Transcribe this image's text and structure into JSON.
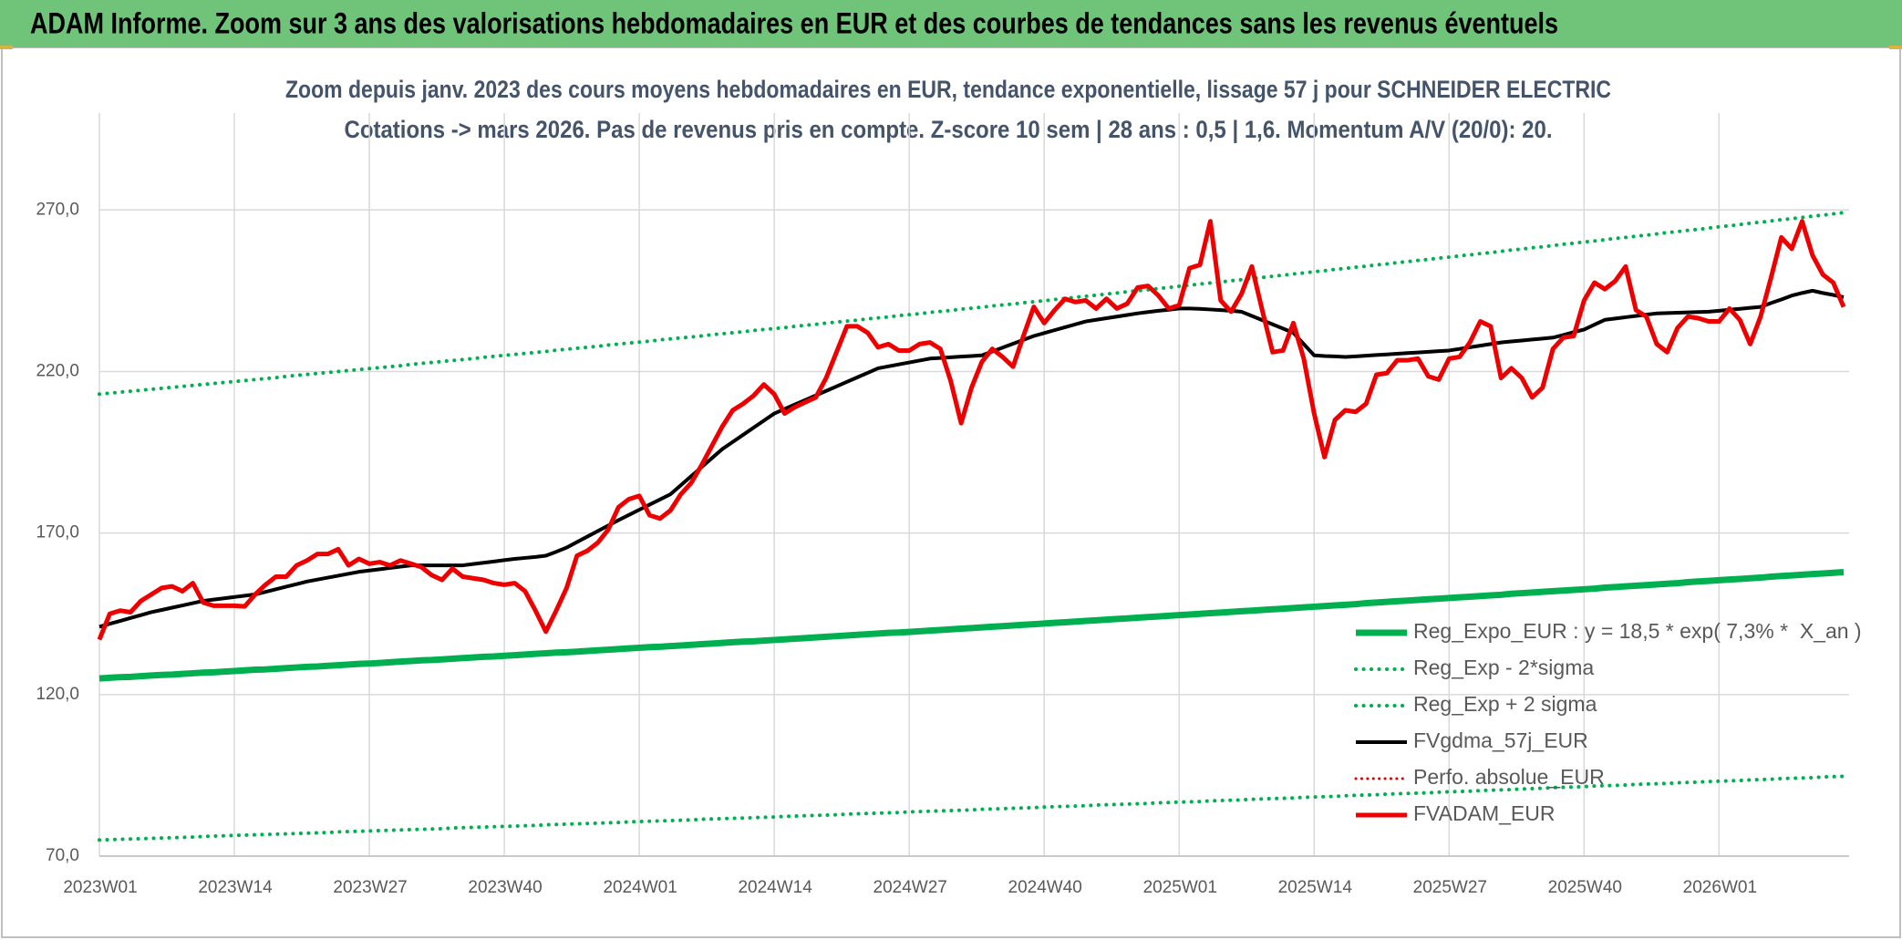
{
  "chart_data": {
    "type": "line",
    "title": "ADAM Informe. Zoom sur 3 ans des valorisations hebdomadaires en EUR et des courbes de tendances sans les revenus éventuels",
    "subtitle": [
      "Zoom depuis janv. 2023 des cours moyens hebdomadaires en EUR, tendance exponentielle, lissage 57 j pour SCHNEIDER ELECTRIC",
      "Cotations -> mars 2026. Pas de revenus pris en compte. Z-score 10 sem | 28 ans : 0,5 | 1,6. Momentum A/V (20/0): 20."
    ],
    "categories": [
      "2023W01",
      null,
      null,
      null,
      null,
      null,
      null,
      null,
      null,
      null,
      null,
      null,
      null,
      "2023W14",
      null,
      null,
      null,
      null,
      null,
      null,
      null,
      null,
      null,
      null,
      null,
      null,
      "2023W27",
      null,
      null,
      null,
      null,
      null,
      null,
      null,
      null,
      null,
      null,
      null,
      null,
      "2023W40",
      null,
      null,
      null,
      null,
      null,
      null,
      null,
      null,
      null,
      null,
      null,
      null,
      "2024W01",
      null,
      null,
      null,
      null,
      null,
      null,
      null,
      null,
      null,
      null,
      null,
      null,
      "2024W14",
      null,
      null,
      null,
      null,
      null,
      null,
      null,
      null,
      null,
      null,
      null,
      null,
      "2024W27",
      null,
      null,
      null,
      null,
      null,
      null,
      null,
      null,
      null,
      null,
      null,
      null,
      "2024W40",
      null,
      null,
      null,
      null,
      null,
      null,
      null,
      null,
      null,
      null,
      null,
      null,
      "2025W01",
      null,
      null,
      null,
      null,
      null,
      null,
      null,
      null,
      null,
      null,
      null,
      null,
      "2025W14",
      null,
      null,
      null,
      null,
      null,
      null,
      null,
      null,
      null,
      null,
      null,
      null,
      "2025W27",
      null,
      null,
      null,
      null,
      null,
      null,
      null,
      null,
      null,
      null,
      null,
      null,
      "2025W40",
      null,
      null,
      null,
      null,
      null,
      null,
      null,
      null,
      null,
      null,
      null,
      null,
      "2026W01",
      null,
      null,
      null,
      null,
      null,
      null,
      null,
      null,
      null,
      null,
      null,
      null
    ],
    "ylim": [
      70,
      300
    ],
    "yticks": [
      {
        "value": 70,
        "label": "70,0"
      },
      {
        "value": 120,
        "label": "120,0"
      },
      {
        "value": 170,
        "label": "170,0"
      },
      {
        "value": 220,
        "label": "220,0"
      },
      {
        "value": 270,
        "label": "270,0"
      }
    ],
    "grid": true,
    "legend": "lower right",
    "series": [
      {
        "name": "Reg_Expo_EUR : y = 18,5 * exp( 7,3% *  X_an )",
        "color": "#00b050",
        "style": "solid",
        "width": 7,
        "values": [
          125.0,
          125.2,
          125.4,
          125.5,
          125.7,
          125.9,
          126.1,
          126.2,
          126.4,
          126.6,
          126.8,
          126.9,
          127.1,
          127.3,
          127.5,
          127.7,
          127.8,
          128.0,
          128.2,
          128.4,
          128.6,
          128.7,
          128.9,
          129.1,
          129.3,
          129.5,
          129.6,
          129.8,
          130.0,
          130.2,
          130.4,
          130.6,
          130.7,
          130.9,
          131.1,
          131.3,
          131.5,
          131.7,
          131.8,
          132.0,
          132.2,
          132.4,
          132.6,
          132.8,
          133.0,
          133.1,
          133.3,
          133.5,
          133.7,
          133.9,
          134.1,
          134.3,
          134.5,
          134.7,
          134.8,
          135.0,
          135.2,
          135.4,
          135.6,
          135.8,
          136.0,
          136.2,
          136.4,
          136.5,
          136.7,
          136.9,
          137.1,
          137.3,
          137.5,
          137.7,
          137.9,
          138.1,
          138.3,
          138.5,
          138.7,
          138.9,
          139.1,
          139.2,
          139.4,
          139.6,
          139.8,
          140.0,
          140.2,
          140.4,
          140.6,
          140.8,
          141.0,
          141.2,
          141.4,
          141.6,
          141.8,
          142.0,
          142.2,
          142.4,
          142.6,
          142.8,
          143.0,
          143.2,
          143.4,
          143.6,
          143.8,
          144.0,
          144.2,
          144.4,
          144.6,
          144.8,
          145.0,
          145.2,
          145.4,
          145.6,
          145.8,
          146.0,
          146.2,
          146.4,
          146.6,
          146.8,
          147.0,
          147.2,
          147.4,
          147.6,
          147.8,
          148.0,
          148.3,
          148.5,
          148.7,
          148.9,
          149.1,
          149.3,
          149.5,
          149.7,
          149.9,
          150.1,
          150.3,
          150.5,
          150.7,
          150.9,
          151.2,
          151.4,
          151.6,
          151.8,
          152.0,
          152.2,
          152.4,
          152.6,
          152.8,
          153.1,
          153.3,
          153.5,
          153.7,
          153.9,
          154.1,
          154.3,
          154.5,
          154.8,
          155.0,
          155.2,
          155.4,
          155.6,
          155.8,
          156.0,
          156.2,
          156.5,
          156.7,
          156.9,
          157.1,
          157.3,
          157.5,
          157.7,
          157.9
        ]
      },
      {
        "name": "Reg_Exp - 2*sigma",
        "color": "#00b050",
        "style": "dotted",
        "width": 4,
        "values": [
          75.0,
          75.1,
          75.2,
          75.3,
          75.4,
          75.5,
          75.6,
          75.7,
          75.8,
          75.9,
          76.1,
          76.2,
          76.3,
          76.4,
          76.5,
          76.6,
          76.7,
          76.8,
          76.9,
          77.0,
          77.1,
          77.2,
          77.3,
          77.5,
          77.6,
          77.7,
          77.8,
          77.9,
          78.0,
          78.1,
          78.2,
          78.3,
          78.4,
          78.5,
          78.7,
          78.8,
          78.9,
          79.0,
          79.1,
          79.2,
          79.3,
          79.4,
          79.5,
          79.7,
          79.8,
          79.9,
          80.0,
          80.1,
          80.2,
          80.3,
          80.4,
          80.6,
          80.7,
          80.8,
          80.9,
          81.0,
          81.1,
          81.2,
          81.4,
          81.5,
          81.6,
          81.7,
          81.8,
          81.9,
          82.0,
          82.1,
          82.3,
          82.4,
          82.5,
          82.6,
          82.7,
          82.8,
          83.0,
          83.1,
          83.2,
          83.3,
          83.4,
          83.5,
          83.7,
          83.8,
          83.9,
          84.0,
          84.1,
          84.2,
          84.3,
          84.5,
          84.6,
          84.7,
          84.8,
          84.9,
          85.0,
          85.2,
          85.3,
          85.4,
          85.5,
          85.6,
          85.8,
          85.9,
          86.0,
          86.1,
          86.2,
          86.3,
          86.5,
          86.6,
          86.7,
          86.8,
          86.9,
          87.1,
          87.2,
          87.3,
          87.4,
          87.6,
          87.7,
          87.8,
          87.9,
          88.0,
          88.2,
          88.3,
          88.4,
          88.5,
          88.7,
          88.8,
          88.9,
          89.0,
          89.2,
          89.3,
          89.4,
          89.5,
          89.6,
          89.8,
          89.9,
          90.0,
          90.1,
          90.3,
          90.4,
          90.5,
          90.6,
          90.8,
          90.9,
          91.0,
          91.2,
          91.3,
          91.4,
          91.5,
          91.7,
          91.8,
          91.9,
          92.0,
          92.2,
          92.3,
          92.4,
          92.5,
          92.7,
          92.8,
          92.9,
          93.1,
          93.2,
          93.3,
          93.4,
          93.6,
          93.7,
          93.8,
          94.0,
          94.1,
          94.2,
          94.3,
          94.5,
          94.6,
          94.7
        ]
      },
      {
        "name": "Reg_Exp + 2 sigma",
        "color": "#00b050",
        "style": "dotted",
        "width": 4,
        "values": [
          213.0,
          213.3,
          213.6,
          213.9,
          214.2,
          214.5,
          214.8,
          215.1,
          215.4,
          215.7,
          216.0,
          216.3,
          216.6,
          216.9,
          217.2,
          217.5,
          217.8,
          218.1,
          218.5,
          218.8,
          219.1,
          219.4,
          219.7,
          220.0,
          220.3,
          220.6,
          220.9,
          221.2,
          221.5,
          221.8,
          222.2,
          222.5,
          222.8,
          223.1,
          223.4,
          223.7,
          224.0,
          224.4,
          224.7,
          225.0,
          225.3,
          225.6,
          225.9,
          226.2,
          226.6,
          226.9,
          227.2,
          227.5,
          227.8,
          228.2,
          228.5,
          228.8,
          229.1,
          229.4,
          229.8,
          230.1,
          230.4,
          230.7,
          231.0,
          231.4,
          231.7,
          232.0,
          232.3,
          232.7,
          233.0,
          233.3,
          233.6,
          234.0,
          234.3,
          234.6,
          235.0,
          235.3,
          235.6,
          235.9,
          236.3,
          236.6,
          236.9,
          237.3,
          237.6,
          237.9,
          238.3,
          238.6,
          238.9,
          239.3,
          239.6,
          239.9,
          240.3,
          240.6,
          240.9,
          241.3,
          241.6,
          241.9,
          242.3,
          242.6,
          243.0,
          243.3,
          243.6,
          244.0,
          244.3,
          244.7,
          245.0,
          245.3,
          245.7,
          246.0,
          246.4,
          246.7,
          247.1,
          247.4,
          247.7,
          248.1,
          248.4,
          248.8,
          249.1,
          249.5,
          249.8,
          250.2,
          250.5,
          250.9,
          251.2,
          251.6,
          251.9,
          252.3,
          252.6,
          253.0,
          253.3,
          253.7,
          254.0,
          254.4,
          254.7,
          255.1,
          255.4,
          255.8,
          256.1,
          256.5,
          256.8,
          257.2,
          257.6,
          257.9,
          258.3,
          258.6,
          259.0,
          259.4,
          259.7,
          260.1,
          260.4,
          260.8,
          261.2,
          261.5,
          261.9,
          262.2,
          262.6,
          263.0,
          263.3,
          263.7,
          264.0,
          264.4,
          264.8,
          265.1,
          265.5,
          265.9,
          266.2,
          266.6,
          267.0,
          267.3,
          267.7,
          268.1,
          268.4,
          268.8,
          269.2
        ]
      },
      {
        "name": "FVgdma_57j_EUR",
        "color": "#000000",
        "style": "solid",
        "width": 4,
        "values": [
          141.0,
          141.9,
          142.8,
          143.7,
          144.6,
          145.5,
          146.2,
          146.9,
          147.6,
          148.3,
          149.0,
          149.4,
          149.8,
          150.2,
          150.6,
          151.0,
          151.8,
          152.6,
          153.4,
          154.2,
          155.0,
          155.6,
          156.2,
          156.8,
          157.4,
          158.0,
          158.4,
          158.8,
          159.2,
          159.6,
          160.0,
          160.0,
          160.0,
          160.0,
          160.0,
          160.0,
          160.4,
          160.8,
          161.2,
          161.6,
          162.0,
          162.3,
          162.6,
          163.0,
          164.2,
          165.5,
          167.2,
          168.9,
          170.6,
          172.3,
          174.0,
          175.6,
          177.2,
          178.8,
          180.4,
          182.0,
          184.8,
          187.6,
          190.4,
          193.2,
          196.0,
          198.2,
          200.4,
          202.6,
          204.8,
          207.0,
          208.4,
          209.8,
          211.2,
          212.6,
          214.0,
          215.4,
          216.8,
          218.2,
          219.6,
          221.0,
          221.6,
          222.2,
          222.8,
          223.4,
          224.0,
          224.2,
          224.4,
          224.6,
          224.8,
          225.0,
          226.2,
          227.4,
          228.6,
          229.8,
          231.0,
          231.9,
          232.8,
          233.7,
          234.6,
          235.5,
          236.0,
          236.5,
          237.0,
          237.5,
          238.0,
          238.4,
          238.8,
          239.1,
          239.5,
          239.5,
          239.4,
          239.2,
          239.0,
          238.8,
          238.5,
          237.2,
          235.9,
          234.6,
          233.3,
          232.0,
          228.5,
          225.0,
          224.8,
          224.7,
          224.5,
          224.7,
          224.9,
          225.1,
          225.3,
          225.5,
          225.7,
          225.9,
          226.1,
          226.3,
          226.5,
          227.0,
          227.5,
          228.0,
          228.5,
          229.0,
          229.3,
          229.6,
          229.9,
          230.2,
          230.5,
          231.3,
          232.2,
          233.0,
          234.5,
          236.0,
          236.4,
          236.8,
          237.2,
          237.6,
          238.0,
          238.1,
          238.2,
          238.3,
          238.4,
          238.5,
          238.8,
          239.1,
          239.4,
          239.7,
          240.0,
          241.2,
          242.3,
          243.5,
          244.3,
          245.0,
          244.3,
          243.7,
          243.0
        ]
      },
      {
        "name": "Perfo. absolue_EUR",
        "color": "#e00000",
        "style": "dotted",
        "width": 3
      },
      {
        "name": "FVADAM_EUR",
        "color": "#ee0000",
        "style": "solid",
        "width": 5,
        "values": [
          137.0,
          145.0,
          146.0,
          145.5,
          149.0,
          151.0,
          153.0,
          153.5,
          152.0,
          154.5,
          148.5,
          147.5,
          147.5,
          147.5,
          147.3,
          151.0,
          154.0,
          156.5,
          156.5,
          160.0,
          161.5,
          163.5,
          163.5,
          165.0,
          160.0,
          162.0,
          160.5,
          161.0,
          160.0,
          161.5,
          160.5,
          159.5,
          157.0,
          155.5,
          159.0,
          156.5,
          156.0,
          155.5,
          154.5,
          154.0,
          154.5,
          152.0,
          146.0,
          139.5,
          146.0,
          153.0,
          163.0,
          164.5,
          167.0,
          171.0,
          178.0,
          180.5,
          181.5,
          175.5,
          174.5,
          177.0,
          182.0,
          185.5,
          191.0,
          197.0,
          203.0,
          208.0,
          210.0,
          212.5,
          216.0,
          213.0,
          207.0,
          209.0,
          210.5,
          212.0,
          218.0,
          226.0,
          234.0,
          234.0,
          232.0,
          227.5,
          228.5,
          226.5,
          226.5,
          228.5,
          229.0,
          227.0,
          217.0,
          204.0,
          215.0,
          223.0,
          227.0,
          224.5,
          221.5,
          231.0,
          240.0,
          235.0,
          239.0,
          242.5,
          241.5,
          242.0,
          239.5,
          242.5,
          239.5,
          241.0,
          246.0,
          246.5,
          243.5,
          239.5,
          240.5,
          252.0,
          253.0,
          266.5,
          242.0,
          238.5,
          244.0,
          252.5,
          239.0,
          226.0,
          226.5,
          235.0,
          224.0,
          207.0,
          193.5,
          205.0,
          208.0,
          207.5,
          210.0,
          219.0,
          219.5,
          223.5,
          223.5,
          224.0,
          218.5,
          217.5,
          224.0,
          224.5,
          229.0,
          235.5,
          234.0,
          218.0,
          221.0,
          218.0,
          212.0,
          215.0,
          227.0,
          230.5,
          231.0,
          242.0,
          247.5,
          245.5,
          248.0,
          252.5,
          239.0,
          237.0,
          228.5,
          226.0,
          233.5,
          237.0,
          236.5,
          235.5,
          235.5,
          239.5,
          236.0,
          228.5,
          237.0,
          249.0,
          261.5,
          258.0,
          266.5,
          256.0,
          250.0,
          247.5,
          240.0
        ]
      }
    ]
  }
}
